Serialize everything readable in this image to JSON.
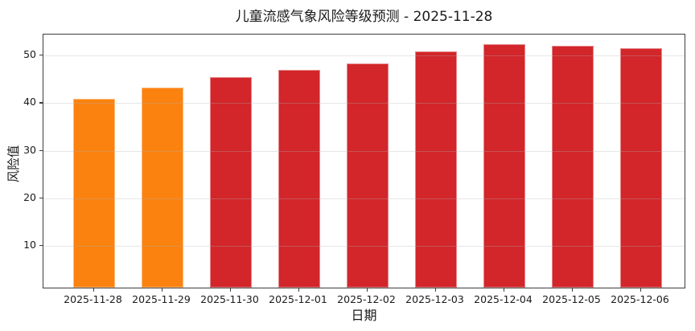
{
  "chart_data": {
    "type": "bar",
    "title": "儿童流感气象风险等级预测 - 2025-11-28",
    "xlabel": "日期",
    "ylabel": "风险值",
    "categories": [
      "2025-11-28",
      "2025-11-29",
      "2025-11-30",
      "2025-12-01",
      "2025-12-02",
      "2025-12-03",
      "2025-12-04",
      "2025-12-05",
      "2025-12-06"
    ],
    "values": [
      40.5,
      43.0,
      45.2,
      46.7,
      48.0,
      50.5,
      52.0,
      51.7,
      51.2
    ],
    "bar_colors": [
      "#fb820f",
      "#fb820f",
      "#d2262a",
      "#d2262a",
      "#d2262a",
      "#d2262a",
      "#d2262a",
      "#d2262a",
      "#d2262a"
    ],
    "yticks": [
      10,
      20,
      30,
      40,
      50
    ],
    "ylim": [
      0.9,
      54.4
    ],
    "grid": true,
    "grid_over_bars": true,
    "legend": null,
    "colors": {
      "orange_risk": "#fb820f",
      "red_risk": "#d2262a",
      "gridline": "#b0b0b0",
      "spine": "#3d3d3d",
      "background": "#ffffff",
      "text": "#1a1a1a"
    }
  }
}
